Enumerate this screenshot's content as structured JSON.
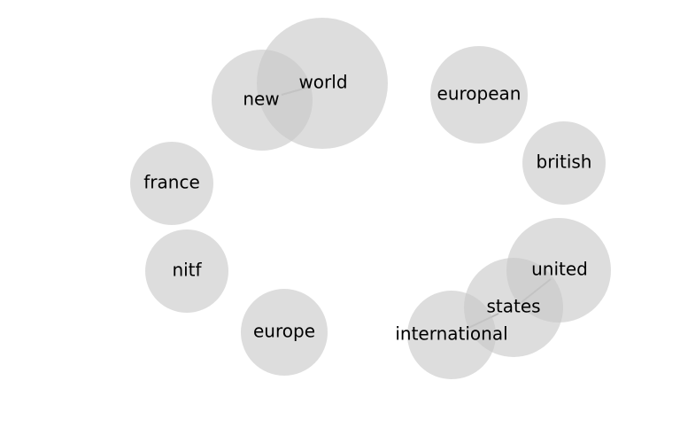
{
  "graph": {
    "nodes": [
      {
        "id": "world",
        "label": "world"
      },
      {
        "id": "new",
        "label": "new"
      },
      {
        "id": "european",
        "label": "european"
      },
      {
        "id": "british",
        "label": "british"
      },
      {
        "id": "france",
        "label": "france"
      },
      {
        "id": "nitf",
        "label": "nitf"
      },
      {
        "id": "united",
        "label": "united"
      },
      {
        "id": "states",
        "label": "states"
      },
      {
        "id": "europe",
        "label": "europe"
      },
      {
        "id": "international",
        "label": "international"
      }
    ],
    "edges": [
      {
        "source": "new",
        "target": "world"
      },
      {
        "source": "united",
        "target": "states"
      },
      {
        "source": "states",
        "target": "international"
      }
    ]
  }
}
